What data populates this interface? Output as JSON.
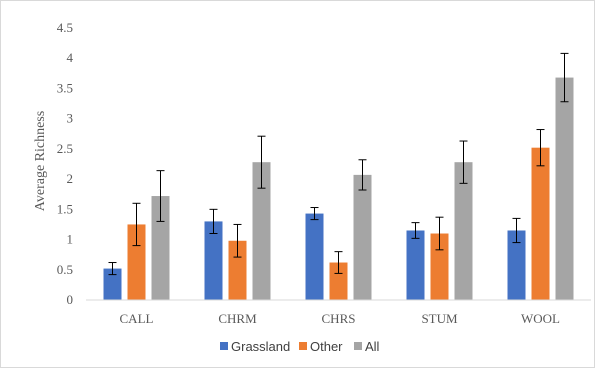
{
  "chart_data": {
    "type": "bar",
    "title": "",
    "xlabel": "",
    "ylabel": "Average Richness",
    "ylim": [
      0,
      4.5
    ],
    "yticks": [
      0,
      0.5,
      1,
      1.5,
      2,
      2.5,
      3,
      3.5,
      4,
      4.5
    ],
    "ytick_labels": [
      "0",
      "0.5",
      "1",
      "1.5",
      "2",
      "2.5",
      "3",
      "3.5",
      "4",
      "4.5"
    ],
    "grid": false,
    "legend_position": "bottom",
    "categories": [
      "CALL",
      "CHRM",
      "CHRS",
      "STUM",
      "WOOL"
    ],
    "series": [
      {
        "name": "Grassland",
        "color": "#4472c4",
        "values": [
          0.52,
          1.3,
          1.43,
          1.15,
          1.15
        ],
        "errors": [
          0.1,
          0.2,
          0.1,
          0.13,
          0.2
        ]
      },
      {
        "name": "Other",
        "color": "#ed7d31",
        "values": [
          1.25,
          0.98,
          0.62,
          1.1,
          2.52
        ],
        "errors": [
          0.35,
          0.27,
          0.18,
          0.27,
          0.3
        ]
      },
      {
        "name": "All",
        "color": "#a5a5a5",
        "values": [
          1.72,
          2.28,
          2.07,
          2.28,
          3.68
        ],
        "errors": [
          0.42,
          0.43,
          0.25,
          0.35,
          0.4
        ]
      }
    ]
  }
}
